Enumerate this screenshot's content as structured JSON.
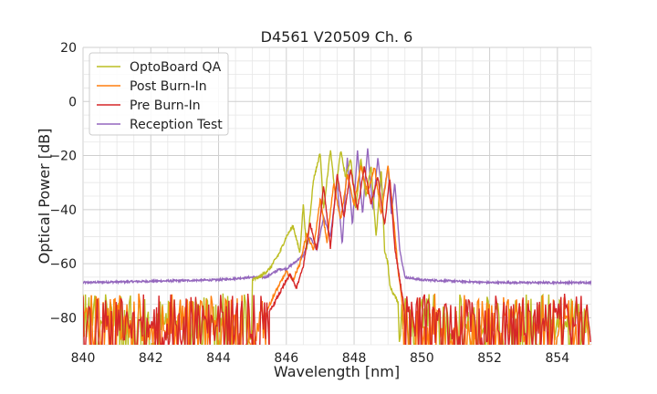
{
  "chart_data": {
    "type": "line",
    "title": "D4561 V20509 Ch. 6",
    "xlabel": "Wavelength [nm]",
    "ylabel": "Optical Power [dB]",
    "xlim": [
      840,
      855
    ],
    "ylim": [
      -90,
      20
    ],
    "xticks": [
      840,
      842,
      844,
      846,
      848,
      850,
      852,
      854
    ],
    "yticks": [
      20,
      0,
      -20,
      -40,
      -60,
      -80
    ],
    "xtick_labels": [
      "840",
      "842",
      "844",
      "846",
      "848",
      "850",
      "852",
      "854"
    ],
    "ytick_labels": [
      "20",
      "0",
      "−20",
      "−40",
      "−60",
      "−80"
    ],
    "grid": true,
    "grid_minor": true,
    "legend_position": "top-left",
    "series": [
      {
        "name": "OptoBoard QA",
        "color": "#bcbd22",
        "noise_range": [
          -90,
          -71
        ],
        "x": [
          845.0,
          845.2,
          845.5,
          845.8,
          846.0,
          846.2,
          846.4,
          846.5,
          846.6,
          846.8,
          847.0,
          847.1,
          847.3,
          847.45,
          847.6,
          847.75,
          847.9,
          848.05,
          848.2,
          848.35,
          848.5,
          848.65,
          848.8,
          848.9,
          849.0,
          849.05,
          849.15,
          849.3
        ],
        "values": [
          -66,
          -65,
          -62,
          -56,
          -50,
          -46,
          -56,
          -38,
          -55,
          -29,
          -19,
          -40,
          -18,
          -35,
          -18,
          -28,
          -21,
          -40,
          -21,
          -35,
          -24,
          -50,
          -25,
          -55,
          -60,
          -68,
          -71,
          -74
        ]
      },
      {
        "name": "Post Burn-In",
        "color": "#ff7f0e",
        "noise_range": [
          -90,
          -71
        ],
        "x": [
          845.4,
          845.7,
          846.0,
          846.2,
          846.4,
          846.6,
          846.8,
          847.0,
          847.2,
          847.4,
          847.6,
          847.8,
          848.0,
          848.2,
          848.4,
          848.6,
          848.8,
          849.0,
          849.1,
          849.2,
          849.3,
          849.4
        ],
        "values": [
          -78,
          -70,
          -63,
          -66,
          -60,
          -49,
          -55,
          -36,
          -52,
          -30,
          -44,
          -27,
          -38,
          -24,
          -34,
          -24,
          -42,
          -24,
          -35,
          -48,
          -63,
          -72
        ]
      },
      {
        "name": "Pre Burn-In",
        "color": "#d62728",
        "noise_range": [
          -90,
          -71
        ],
        "x": [
          845.5,
          845.8,
          846.1,
          846.3,
          846.5,
          846.7,
          846.9,
          847.1,
          847.3,
          847.5,
          847.7,
          847.9,
          848.1,
          848.3,
          848.5,
          848.7,
          848.9,
          849.05,
          849.2,
          849.3,
          849.45
        ],
        "values": [
          -78,
          -71,
          -64,
          -69,
          -61,
          -45,
          -55,
          -31,
          -54,
          -27,
          -43,
          -25,
          -40,
          -24,
          -38,
          -28,
          -46,
          -28,
          -54,
          -62,
          -74
        ]
      },
      {
        "name": "Reception Test",
        "color": "#9467bd",
        "baseline": -67,
        "x": [
          840.0,
          844.0,
          845.0,
          845.4,
          845.8,
          846.0,
          846.2,
          846.5,
          846.7,
          846.9,
          847.1,
          847.3,
          847.5,
          847.65,
          847.8,
          847.95,
          848.1,
          848.25,
          848.4,
          848.55,
          848.7,
          848.85,
          849.0,
          849.1,
          849.2,
          849.35,
          849.5,
          850.0,
          852.0,
          855.0
        ],
        "values": [
          -67,
          -66,
          -65,
          -65,
          -62,
          -62,
          -60,
          -57,
          -50,
          -55,
          -43,
          -50,
          -30,
          -53,
          -21,
          -46,
          -18,
          -42,
          -17,
          -40,
          -21,
          -36,
          -24,
          -42,
          -30,
          -55,
          -65,
          -66,
          -67,
          -67
        ]
      }
    ]
  }
}
